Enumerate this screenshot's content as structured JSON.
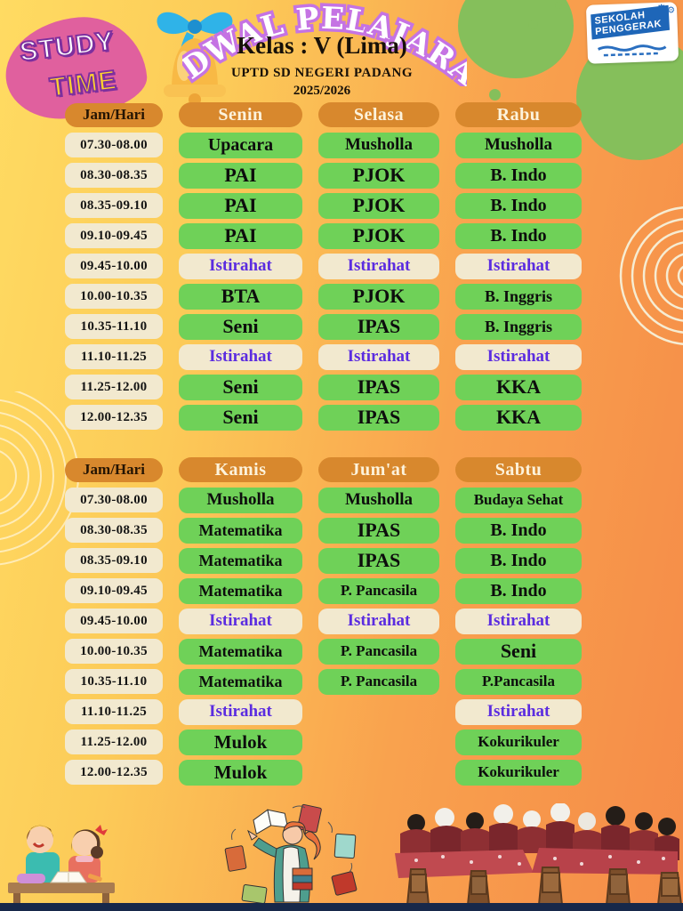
{
  "header": {
    "badge": {
      "line1": "STUDY",
      "line2": "TIME"
    },
    "title": "JADWAL PELAJARAN",
    "subtitle": "Kelas : V (Lima)",
    "school": "UPTD SD NEGERI PADANG",
    "year": "2025/2026",
    "logo": {
      "line1": "SEKOLAH",
      "line2": "PENGGERAK"
    }
  },
  "colors": {
    "background_yellow": "#ffdb62",
    "background_orange": "#f58b48",
    "header_pill": "#d8882d",
    "subject_green": "#6fd158",
    "cream": "#f2e9cf",
    "break_text_purple": "#5b2ce0",
    "title_outline_purple": "#c573e3",
    "badge_pink": "#e0609e",
    "logo_blue": "#1e66b8",
    "bottom_bar_navy": "#17284a",
    "decor_green": "#85bf5b"
  },
  "tables": [
    {
      "columns": [
        "Jam/Hari",
        "Senin",
        "Selasa",
        "Rabu"
      ],
      "rows": [
        {
          "time": "07.30-08.00",
          "cells": [
            {
              "text": "Upacara",
              "type": "subject"
            },
            {
              "text": "Musholla",
              "type": "subject"
            },
            {
              "text": "Musholla",
              "type": "subject"
            }
          ]
        },
        {
          "time": "08.30-08.35",
          "cells": [
            {
              "text": "PAI",
              "type": "subject"
            },
            {
              "text": "PJOK",
              "type": "subject"
            },
            {
              "text": "B. Indo",
              "type": "subject"
            }
          ]
        },
        {
          "time": "08.35-09.10",
          "cells": [
            {
              "text": "PAI",
              "type": "subject"
            },
            {
              "text": "PJOK",
              "type": "subject"
            },
            {
              "text": "B. Indo",
              "type": "subject"
            }
          ]
        },
        {
          "time": "09.10-09.45",
          "cells": [
            {
              "text": "PAI",
              "type": "subject"
            },
            {
              "text": "PJOK",
              "type": "subject"
            },
            {
              "text": "B. Indo",
              "type": "subject"
            }
          ]
        },
        {
          "time": "09.45-10.00",
          "cells": [
            {
              "text": "Istirahat",
              "type": "break"
            },
            {
              "text": "Istirahat",
              "type": "break"
            },
            {
              "text": "Istirahat",
              "type": "break"
            }
          ]
        },
        {
          "time": "10.00-10.35",
          "cells": [
            {
              "text": "BTA",
              "type": "subject"
            },
            {
              "text": "PJOK",
              "type": "subject"
            },
            {
              "text": "B. Inggris",
              "type": "subject"
            }
          ]
        },
        {
          "time": "10.35-11.10",
          "cells": [
            {
              "text": "Seni",
              "type": "subject"
            },
            {
              "text": "IPAS",
              "type": "subject"
            },
            {
              "text": "B. Inggris",
              "type": "subject"
            }
          ]
        },
        {
          "time": "11.10-11.25",
          "cells": [
            {
              "text": "Istirahat",
              "type": "break"
            },
            {
              "text": "Istirahat",
              "type": "break"
            },
            {
              "text": "Istirahat",
              "type": "break"
            }
          ]
        },
        {
          "time": "11.25-12.00",
          "cells": [
            {
              "text": "Seni",
              "type": "subject"
            },
            {
              "text": "IPAS",
              "type": "subject"
            },
            {
              "text": "KKA",
              "type": "subject"
            }
          ]
        },
        {
          "time": "12.00-12.35",
          "cells": [
            {
              "text": "Seni",
              "type": "subject"
            },
            {
              "text": "IPAS",
              "type": "subject"
            },
            {
              "text": "KKA",
              "type": "subject"
            }
          ]
        }
      ]
    },
    {
      "columns": [
        "Jam/Hari",
        "Kamis",
        "Jum'at",
        "Sabtu"
      ],
      "rows": [
        {
          "time": "07.30-08.00",
          "cells": [
            {
              "text": "Musholla",
              "type": "subject"
            },
            {
              "text": "Musholla",
              "type": "subject"
            },
            {
              "text": "Budaya Sehat",
              "type": "subject"
            }
          ]
        },
        {
          "time": "08.30-08.35",
          "cells": [
            {
              "text": "Matematika",
              "type": "subject"
            },
            {
              "text": "IPAS",
              "type": "subject"
            },
            {
              "text": "B. Indo",
              "type": "subject"
            }
          ]
        },
        {
          "time": "08.35-09.10",
          "cells": [
            {
              "text": "Matematika",
              "type": "subject"
            },
            {
              "text": "IPAS",
              "type": "subject"
            },
            {
              "text": "B. Indo",
              "type": "subject"
            }
          ]
        },
        {
          "time": "09.10-09.45",
          "cells": [
            {
              "text": "Matematika",
              "type": "subject"
            },
            {
              "text": "P. Pancasila",
              "type": "subject"
            },
            {
              "text": "B. Indo",
              "type": "subject"
            }
          ]
        },
        {
          "time": "09.45-10.00",
          "cells": [
            {
              "text": "Istirahat",
              "type": "break"
            },
            {
              "text": "Istirahat",
              "type": "break"
            },
            {
              "text": "Istirahat",
              "type": "break"
            }
          ]
        },
        {
          "time": "10.00-10.35",
          "cells": [
            {
              "text": "Matematika",
              "type": "subject"
            },
            {
              "text": "P. Pancasila",
              "type": "subject"
            },
            {
              "text": "Seni",
              "type": "subject"
            }
          ]
        },
        {
          "time": "10.35-11.10",
          "cells": [
            {
              "text": "Matematika",
              "type": "subject"
            },
            {
              "text": "P. Pancasila",
              "type": "subject"
            },
            {
              "text": "P.Pancasila",
              "type": "subject"
            }
          ]
        },
        {
          "time": "11.10-11.25",
          "cells": [
            {
              "text": "Istirahat",
              "type": "break"
            },
            {
              "text": "",
              "type": "empty"
            },
            {
              "text": "Istirahat",
              "type": "break"
            }
          ]
        },
        {
          "time": "11.25-12.00",
          "cells": [
            {
              "text": "Mulok",
              "type": "subject"
            },
            {
              "text": "",
              "type": "empty"
            },
            {
              "text": "Kokurikuler",
              "type": "subject"
            }
          ]
        },
        {
          "time": "12.00-12.35",
          "cells": [
            {
              "text": "Mulok",
              "type": "subject"
            },
            {
              "text": "",
              "type": "empty"
            },
            {
              "text": "Kokurikuler",
              "type": "subject"
            }
          ]
        }
      ]
    }
  ],
  "footer": {
    "illustrations": [
      "kids-reading-illustration",
      "teacher-books-illustration",
      "classroom-photo"
    ]
  }
}
